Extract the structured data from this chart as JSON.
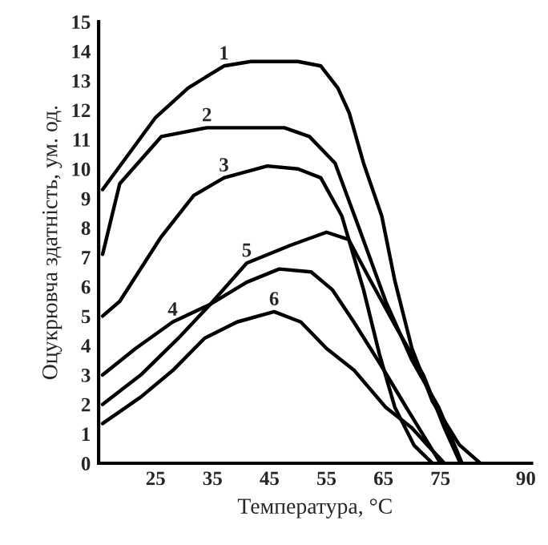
{
  "chart_data": {
    "type": "line",
    "xlabel": "Температура, °C",
    "ylabel": "Оцукрювча здатність, ум. од.",
    "xlim": [
      15,
      91
    ],
    "ylim": [
      0,
      15
    ],
    "xticks": [
      25,
      35,
      45,
      55,
      65,
      75,
      90
    ],
    "yticks": [
      0,
      1,
      2,
      3,
      4,
      5,
      6,
      7,
      8,
      9,
      10,
      11,
      12,
      13,
      14,
      15
    ],
    "grid": false,
    "legend": false,
    "marker": "none",
    "line_style": "solid",
    "series": [
      {
        "name": "1",
        "color": "#000000",
        "x": [
          15.7,
          25,
          30.7,
          37,
          41.7,
          50,
          54,
          57,
          59,
          61.5,
          64.7,
          67,
          70,
          73.6,
          78.3,
          82
        ],
        "values": [
          9.3,
          11.75,
          12.75,
          13.5,
          13.65,
          13.65,
          13.5,
          12.75,
          11.9,
          10.2,
          8.4,
          6.2,
          3.9,
          2.1,
          0.63,
          0
        ]
      },
      {
        "name": "2",
        "color": "#000000",
        "x": [
          15.7,
          18.7,
          26,
          34,
          47.6,
          52,
          56.5,
          60.7,
          65.4,
          70,
          74.7,
          78.8
        ],
        "values": [
          7.1,
          9.5,
          11.1,
          11.4,
          11.4,
          11.1,
          10.2,
          8.0,
          5.5,
          3.5,
          1.9,
          0
        ]
      },
      {
        "name": "3",
        "color": "#000000",
        "x": [
          15.7,
          18.7,
          26,
          31.7,
          37,
          44.6,
          50,
          54,
          57.7,
          61.5,
          64.3,
          67,
          70.4,
          73.6
        ],
        "values": [
          5.0,
          5.5,
          7.7,
          9.1,
          9.7,
          10.1,
          10.0,
          9.7,
          8.4,
          5.9,
          3.7,
          1.9,
          0.6,
          0
        ]
      },
      {
        "name": "4",
        "color": "#000000",
        "x": [
          15.7,
          21.5,
          28,
          34.6,
          41,
          46.7,
          52.3,
          56,
          59.8,
          64.5,
          69,
          74.7,
          75
        ],
        "values": [
          3.0,
          3.9,
          4.8,
          5.4,
          6.15,
          6.6,
          6.5,
          5.9,
          4.8,
          3.35,
          1.9,
          0.1,
          0
        ]
      },
      {
        "name": "5",
        "color": "#000000",
        "x": [
          15.7,
          22.4,
          29,
          34.6,
          41,
          48.6,
          55,
          58.9,
          62.6,
          67.3,
          72,
          75.7,
          78.5
        ],
        "values": [
          2.0,
          3.0,
          4.25,
          5.4,
          6.8,
          7.4,
          7.85,
          7.6,
          6.25,
          4.6,
          3.0,
          1.2,
          0
        ]
      },
      {
        "name": "6",
        "color": "#000000",
        "x": [
          15.7,
          22.4,
          28,
          33.6,
          39.3,
          45.8,
          50.5,
          55,
          59.9,
          65.4,
          70,
          72.8,
          75.7
        ],
        "values": [
          1.35,
          2.25,
          3.15,
          4.25,
          4.8,
          5.15,
          4.8,
          3.9,
          3.15,
          1.9,
          1.2,
          0.6,
          0
        ]
      }
    ]
  }
}
